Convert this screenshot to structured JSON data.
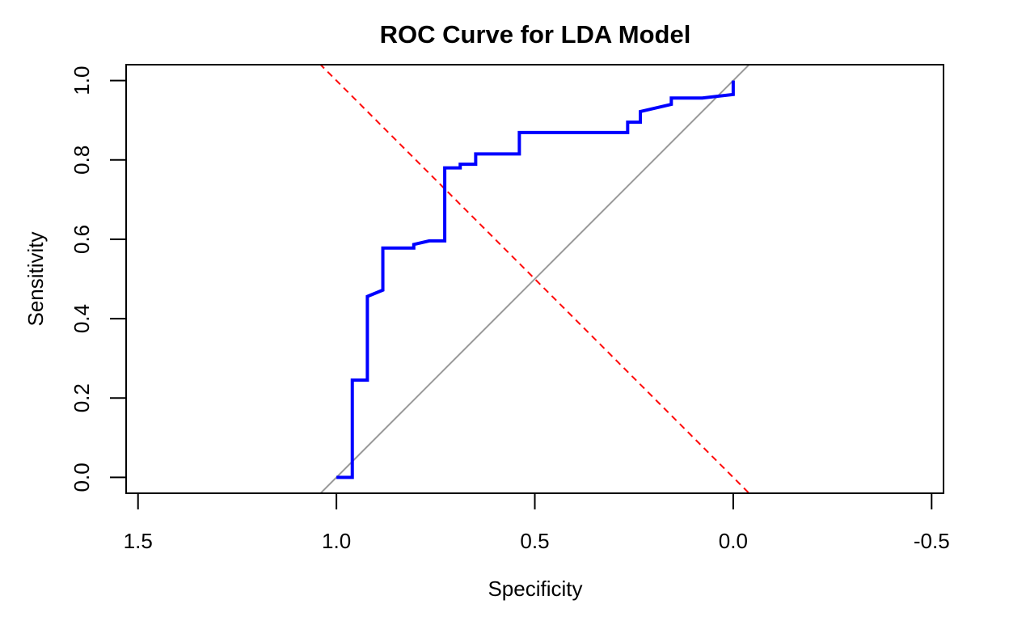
{
  "chart_data": {
    "type": "line",
    "title": "ROC Curve for LDA Model",
    "xlabel": "Specificity",
    "ylabel": "Sensitivity",
    "x_reversed": true,
    "xlim": [
      1.53,
      -0.53
    ],
    "ylim": [
      -0.04,
      1.04
    ],
    "x_ticks": [
      1.5,
      1.0,
      0.5,
      0.0,
      -0.5
    ],
    "x_tick_labels": [
      "1.5",
      "1.0",
      "0.5",
      "0.0",
      "-0.5"
    ],
    "y_ticks": [
      0.0,
      0.2,
      0.4,
      0.6,
      0.8,
      1.0
    ],
    "y_tick_labels": [
      "0.0",
      "0.2",
      "0.4",
      "0.6",
      "0.8",
      "1.0"
    ],
    "grid": false,
    "series": [
      {
        "color": "#0000ff",
        "style": "solid",
        "points": [
          [
            1.0,
            0.0
          ],
          [
            0.96,
            0.0
          ],
          [
            0.96,
            0.245
          ],
          [
            0.922,
            0.245
          ],
          [
            0.922,
            0.456
          ],
          [
            0.883,
            0.472
          ],
          [
            0.883,
            0.578
          ],
          [
            0.805,
            0.578
          ],
          [
            0.805,
            0.587
          ],
          [
            0.766,
            0.596
          ],
          [
            0.727,
            0.596
          ],
          [
            0.727,
            0.78
          ],
          [
            0.688,
            0.78
          ],
          [
            0.688,
            0.789
          ],
          [
            0.649,
            0.789
          ],
          [
            0.649,
            0.815
          ],
          [
            0.539,
            0.815
          ],
          [
            0.539,
            0.869
          ],
          [
            0.266,
            0.869
          ],
          [
            0.266,
            0.895
          ],
          [
            0.234,
            0.895
          ],
          [
            0.234,
            0.922
          ],
          [
            0.156,
            0.94
          ],
          [
            0.156,
            0.956
          ],
          [
            0.078,
            0.956
          ],
          [
            0.0,
            0.965
          ],
          [
            0.0,
            1.0
          ]
        ]
      },
      {
        "color": "#999999",
        "style": "solid",
        "kind": "reference-diagonal",
        "points": [
          [
            1.0,
            0.0
          ],
          [
            0.0,
            1.0
          ]
        ]
      },
      {
        "color": "#ff0000",
        "style": "dashed",
        "kind": "anti-diagonal",
        "points": [
          [
            1.0,
            1.0
          ],
          [
            0.0,
            0.0
          ]
        ]
      }
    ]
  }
}
